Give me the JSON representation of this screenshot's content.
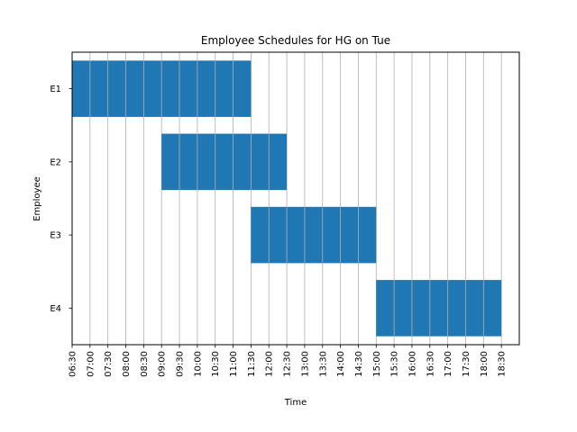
{
  "chart_data": {
    "type": "gantt",
    "title": "Employee Schedules for HG on Tue",
    "xlabel": "Time",
    "ylabel": "Employee",
    "x_ticks": [
      "06:30",
      "07:00",
      "07:30",
      "08:00",
      "08:30",
      "09:00",
      "09:30",
      "10:00",
      "10:30",
      "11:00",
      "11:30",
      "12:00",
      "12:30",
      "13:00",
      "13:30",
      "14:00",
      "14:30",
      "15:00",
      "15:30",
      "16:00",
      "16:30",
      "17:00",
      "17:30",
      "18:00",
      "18:30"
    ],
    "xlim": [
      "06:30",
      "19:00"
    ],
    "grid": "vertical",
    "categories": [
      "E1",
      "E2",
      "E3",
      "E4"
    ],
    "shifts": [
      {
        "employee": "E1",
        "start": "06:30",
        "end": "11:30"
      },
      {
        "employee": "E2",
        "start": "09:00",
        "end": "12:30"
      },
      {
        "employee": "E3",
        "start": "11:30",
        "end": "15:00"
      },
      {
        "employee": "E4",
        "start": "15:00",
        "end": "18:30"
      }
    ],
    "bar_color": "#1f77b4"
  }
}
